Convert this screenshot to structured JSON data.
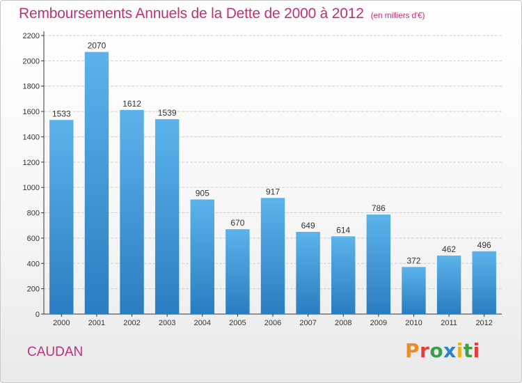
{
  "title": {
    "main": "Remboursements Annuels de la Dette de 2000 à 2012",
    "unit": "(en milliers d'€)"
  },
  "city": "CAUDAN",
  "logo": {
    "text": "Proxiti",
    "letters": [
      "P",
      "r",
      "o",
      "x",
      "i",
      "t",
      "i"
    ],
    "colors": [
      "#f08a1c",
      "#e83a3a",
      "#3aa04a",
      "#2a7fd0",
      "#e8b21c",
      "#3aa04a",
      "#e83a3a"
    ]
  },
  "colors": {
    "title": "#c0307a",
    "bar_top": "#5cb3ea",
    "bar_bottom": "#2a7dc0",
    "grid": "#d0d0d0",
    "axis": "#333333"
  },
  "chart_data": {
    "type": "bar",
    "title": "Remboursements Annuels de la Dette de 2000 à 2012",
    "xlabel": "",
    "ylabel": "",
    "categories": [
      "2000",
      "2001",
      "2002",
      "2003",
      "2004",
      "2005",
      "2006",
      "2007",
      "2008",
      "2009",
      "2010",
      "2011",
      "2012"
    ],
    "values": [
      1533,
      2070,
      1612,
      1539,
      905,
      670,
      917,
      649,
      614,
      786,
      372,
      462,
      496
    ],
    "ylim": [
      0,
      2200
    ],
    "yticks": [
      0,
      200,
      400,
      600,
      800,
      1000,
      1200,
      1400,
      1600,
      1800,
      2000,
      2200
    ],
    "grid": true
  }
}
